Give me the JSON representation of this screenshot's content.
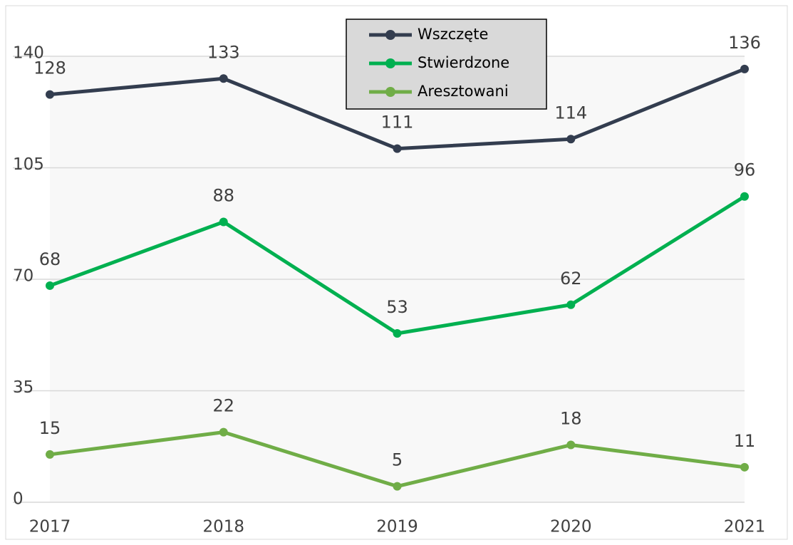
{
  "chart_data": {
    "type": "line",
    "categories": [
      "2017",
      "2018",
      "2019",
      "2020",
      "2021"
    ],
    "series": [
      {
        "name": "Wszczęte",
        "color": "#333d4f",
        "values": [
          128,
          133,
          111,
          114,
          136
        ]
      },
      {
        "name": "Stwierdzone",
        "color": "#00b050",
        "values": [
          68,
          88,
          53,
          62,
          96
        ]
      },
      {
        "name": "Aresztowani",
        "color": "#70ad47",
        "values": [
          15,
          22,
          5,
          18,
          11
        ]
      }
    ],
    "ylim": [
      0,
      140
    ],
    "yticks": [
      0,
      35,
      70,
      105,
      140
    ],
    "grid": true,
    "legend": "top"
  }
}
